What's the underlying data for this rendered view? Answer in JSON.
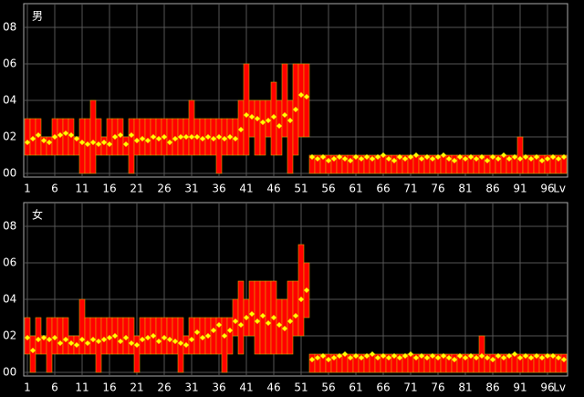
{
  "chart_data": [
    {
      "type": "range-bar",
      "title": "男",
      "x_label": "Lv",
      "bar_color": "#ff0000",
      "edge_color": "#e0a000",
      "mean_color": "#ffff00",
      "grid": true,
      "x": [
        1,
        2,
        3,
        4,
        5,
        6,
        7,
        8,
        9,
        10,
        11,
        12,
        13,
        14,
        15,
        16,
        17,
        18,
        19,
        20,
        21,
        22,
        23,
        24,
        25,
        26,
        27,
        28,
        29,
        30,
        31,
        32,
        33,
        34,
        35,
        36,
        37,
        38,
        39,
        40,
        41,
        42,
        43,
        44,
        45,
        46,
        47,
        48,
        49,
        50,
        51,
        52,
        53,
        54,
        55,
        56,
        57,
        58,
        59,
        60,
        61,
        62,
        63,
        64,
        65,
        66,
        67,
        68,
        69,
        70,
        71,
        72,
        73,
        74,
        75,
        76,
        77,
        78,
        79,
        80,
        81,
        82,
        83,
        84,
        85,
        86,
        87,
        88,
        89,
        90,
        91,
        92,
        93,
        94,
        95,
        96,
        97,
        98,
        99
      ],
      "low": [
        1,
        1,
        1,
        1,
        1,
        1,
        1,
        1,
        1,
        1,
        0,
        0,
        0,
        1,
        1,
        1,
        1,
        1,
        1,
        0,
        1,
        1,
        1,
        1,
        1,
        1,
        1,
        1,
        1,
        1,
        1,
        1,
        1,
        1,
        1,
        0,
        1,
        1,
        1,
        1,
        1,
        2,
        1,
        1,
        2,
        1,
        1,
        2,
        0,
        1,
        2,
        2,
        0,
        0,
        0,
        0,
        0,
        0,
        0,
        0,
        0,
        0,
        0,
        0,
        0,
        0,
        0,
        0,
        0,
        0,
        0,
        0,
        0,
        0,
        0,
        0,
        0,
        0,
        0,
        0,
        0,
        0,
        0,
        0,
        0,
        0,
        0,
        0,
        0,
        0,
        0,
        0,
        0,
        0,
        0,
        0,
        0,
        0,
        0
      ],
      "high": [
        3,
        3,
        3,
        2,
        2,
        3,
        3,
        3,
        3,
        2,
        3,
        3,
        4,
        3,
        2,
        3,
        3,
        3,
        2,
        3,
        3,
        3,
        3,
        3,
        3,
        3,
        3,
        3,
        3,
        3,
        4,
        3,
        3,
        3,
        3,
        3,
        3,
        3,
        3,
        4,
        6,
        4,
        4,
        4,
        4,
        5,
        4,
        6,
        4,
        6,
        6,
        6,
        1,
        1,
        1,
        1,
        1,
        1,
        1,
        1,
        1,
        1,
        1,
        1,
        1,
        1,
        1,
        1,
        1,
        1,
        1,
        1,
        1,
        1,
        1,
        1,
        1,
        1,
        1,
        1,
        1,
        1,
        1,
        1,
        1,
        1,
        1,
        1,
        1,
        1,
        2,
        1,
        1,
        1,
        1,
        1,
        1,
        1,
        1
      ],
      "mean": [
        1.7,
        1.9,
        2.1,
        1.8,
        1.7,
        2.0,
        2.1,
        2.2,
        2.1,
        1.9,
        1.7,
        1.6,
        1.7,
        1.6,
        1.7,
        1.6,
        2.0,
        2.1,
        1.6,
        2.1,
        1.8,
        1.9,
        1.8,
        2.0,
        1.9,
        2.0,
        1.7,
        1.9,
        2.0,
        2.0,
        2.0,
        2.0,
        1.9,
        2.0,
        1.9,
        2.0,
        1.9,
        2.0,
        1.9,
        2.4,
        3.2,
        3.1,
        3.0,
        2.8,
        2.9,
        3.1,
        2.6,
        3.2,
        2.9,
        3.5,
        4.3,
        4.2,
        0.9,
        0.8,
        0.9,
        0.7,
        0.8,
        0.9,
        0.8,
        0.7,
        0.9,
        0.8,
        0.9,
        0.8,
        0.9,
        1.0,
        0.8,
        0.7,
        0.9,
        0.8,
        0.9,
        1.0,
        0.8,
        0.9,
        0.8,
        0.9,
        1.0,
        0.8,
        0.7,
        0.9,
        0.8,
        0.9,
        0.8,
        0.9,
        0.7,
        0.9,
        0.8,
        1.0,
        0.8,
        0.9,
        0.8,
        0.9,
        0.8,
        0.9,
        0.7,
        0.8,
        0.9,
        0.8,
        0.9
      ],
      "xlim": [
        0.5,
        99.5
      ],
      "xticks": [
        1,
        6,
        11,
        16,
        21,
        26,
        31,
        36,
        41,
        46,
        51,
        56,
        61,
        66,
        71,
        76,
        81,
        86,
        91,
        96
      ],
      "ylim": [
        0,
        9
      ],
      "yticks": [
        {
          "value": 0,
          "label": "00"
        },
        {
          "value": 2,
          "label": "02"
        },
        {
          "value": 4,
          "label": "04"
        },
        {
          "value": 6,
          "label": "06"
        },
        {
          "value": 8,
          "label": "08"
        }
      ]
    },
    {
      "type": "range-bar",
      "title": "女",
      "x_label": "Lv",
      "bar_color": "#ff0000",
      "edge_color": "#e0a000",
      "mean_color": "#ffff00",
      "grid": true,
      "x": [
        1,
        2,
        3,
        4,
        5,
        6,
        7,
        8,
        9,
        10,
        11,
        12,
        13,
        14,
        15,
        16,
        17,
        18,
        19,
        20,
        21,
        22,
        23,
        24,
        25,
        26,
        27,
        28,
        29,
        30,
        31,
        32,
        33,
        34,
        35,
        36,
        37,
        38,
        39,
        40,
        41,
        42,
        43,
        44,
        45,
        46,
        47,
        48,
        49,
        50,
        51,
        52,
        53,
        54,
        55,
        56,
        57,
        58,
        59,
        60,
        61,
        62,
        63,
        64,
        65,
        66,
        67,
        68,
        69,
        70,
        71,
        72,
        73,
        74,
        75,
        76,
        77,
        78,
        79,
        80,
        81,
        82,
        83,
        84,
        85,
        86,
        87,
        88,
        89,
        90,
        91,
        92,
        93,
        94,
        95,
        96,
        97,
        98,
        99
      ],
      "low": [
        1,
        0,
        1,
        1,
        0,
        1,
        1,
        1,
        1,
        1,
        1,
        1,
        1,
        0,
        1,
        1,
        1,
        1,
        1,
        1,
        0,
        1,
        1,
        1,
        1,
        1,
        1,
        1,
        0,
        1,
        1,
        1,
        1,
        1,
        1,
        1,
        0,
        1,
        2,
        1,
        2,
        2,
        1,
        1,
        1,
        1,
        1,
        1,
        1,
        2,
        2,
        3,
        0,
        0,
        0,
        0,
        0,
        0,
        0,
        0,
        0,
        0,
        0,
        0,
        0,
        0,
        0,
        0,
        0,
        0,
        0,
        0,
        0,
        0,
        0,
        0,
        0,
        0,
        0,
        0,
        0,
        0,
        0,
        0,
        0,
        0,
        0,
        0,
        0,
        0,
        0,
        0,
        0,
        0,
        0,
        0,
        0,
        0,
        0
      ],
      "high": [
        3,
        2,
        3,
        2,
        3,
        3,
        3,
        3,
        2,
        2,
        4,
        3,
        3,
        3,
        3,
        3,
        3,
        3,
        3,
        3,
        2,
        3,
        3,
        3,
        3,
        3,
        3,
        3,
        3,
        2,
        3,
        3,
        3,
        3,
        3,
        3,
        3,
        3,
        4,
        5,
        4,
        5,
        5,
        5,
        5,
        5,
        4,
        4,
        5,
        5,
        7,
        6,
        1,
        1,
        1,
        1,
        1,
        1,
        1,
        1,
        1,
        1,
        1,
        1,
        1,
        1,
        1,
        1,
        1,
        1,
        1,
        1,
        1,
        1,
        1,
        1,
        1,
        1,
        1,
        1,
        1,
        1,
        1,
        2,
        1,
        1,
        1,
        1,
        1,
        1,
        1,
        1,
        1,
        1,
        1,
        1,
        1,
        1,
        1
      ],
      "mean": [
        1.9,
        1.2,
        1.8,
        1.9,
        1.8,
        1.9,
        1.6,
        1.8,
        1.6,
        1.5,
        1.8,
        1.6,
        1.8,
        1.7,
        1.8,
        1.9,
        2.0,
        1.7,
        1.9,
        1.6,
        1.5,
        1.8,
        1.9,
        2.0,
        1.7,
        1.9,
        1.8,
        1.7,
        1.6,
        1.5,
        1.8,
        2.2,
        1.9,
        2.0,
        2.3,
        2.6,
        2.0,
        2.3,
        2.8,
        2.6,
        3.0,
        3.2,
        2.8,
        3.1,
        2.7,
        3.0,
        2.6,
        2.4,
        2.8,
        3.1,
        4.0,
        4.5,
        0.7,
        0.8,
        0.9,
        0.7,
        0.8,
        0.9,
        1.0,
        0.8,
        0.9,
        0.8,
        0.9,
        1.0,
        0.8,
        0.9,
        0.8,
        0.9,
        0.8,
        0.9,
        1.0,
        0.8,
        0.9,
        0.8,
        0.9,
        0.8,
        0.9,
        0.8,
        0.7,
        0.9,
        0.8,
        0.9,
        0.8,
        0.9,
        0.8,
        0.7,
        0.9,
        0.8,
        0.9,
        1.0,
        0.8,
        0.9,
        0.8,
        0.9,
        0.8,
        0.9,
        0.9,
        0.8,
        0.7
      ],
      "xlim": [
        0.5,
        99.5
      ],
      "xticks": [
        1,
        6,
        11,
        16,
        21,
        26,
        31,
        36,
        41,
        46,
        51,
        56,
        61,
        66,
        71,
        76,
        81,
        86,
        91,
        96
      ],
      "ylim": [
        0,
        9
      ],
      "yticks": [
        {
          "value": 0,
          "label": "00"
        },
        {
          "value": 2,
          "label": "02"
        },
        {
          "value": 4,
          "label": "04"
        },
        {
          "value": 6,
          "label": "06"
        },
        {
          "value": 8,
          "label": "08"
        }
      ]
    }
  ]
}
